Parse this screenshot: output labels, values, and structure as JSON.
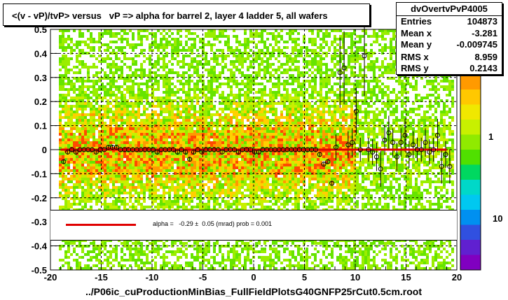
{
  "title": "<(v - vP)/tvP> versus   vP => alpha for barrel 2, layer 4 ladder 5, all wafers",
  "xlabel": "../P06ic_cuProductionMinBias_FullFieldPlotsG40GNFP25rCut0.5cm.root",
  "stats": {
    "name": "dvOvertvPvP4005",
    "rows": [
      {
        "key": "Entries",
        "value": "104873"
      },
      {
        "key": "Mean x",
        "value": "-3.281"
      },
      {
        "key": "Mean y",
        "value": "-0.009745"
      },
      {
        "key": "RMS x",
        "value": "8.959"
      },
      {
        "key": "RMS y",
        "value": "0.2143"
      }
    ]
  },
  "fit": {
    "text": "alpha =   -0.29 ±  0.05 (mrad) prob = 0.001",
    "line_color": "#e00000"
  },
  "colorbar": {
    "labels": [
      "1",
      "10"
    ]
  },
  "chart_data": {
    "type": "scatter",
    "xlim": [
      -20,
      20
    ],
    "ylim": [
      -0.5,
      0.5
    ],
    "x_ticks": [
      -20,
      -15,
      -10,
      -5,
      0,
      5,
      10,
      15,
      20
    ],
    "y_ticks": [
      -0.5,
      -0.4,
      -0.3,
      -0.2,
      -0.1,
      0,
      0.1,
      0.2,
      0.3,
      0.4,
      0.5
    ],
    "x_tick_labels": [
      "-20",
      "-15",
      "-10",
      "-5",
      "0",
      "5",
      "10",
      "15",
      "20"
    ],
    "y_tick_labels": [
      "-0.5",
      "-0.4",
      "-0.3",
      "-0.2",
      "-0.1",
      "0",
      "0.1",
      "0.2",
      "0.3",
      "0.4",
      "0.5"
    ],
    "grid": true,
    "fit_line": {
      "x": [
        -19,
        19
      ],
      "y": [
        0,
        0
      ]
    },
    "points": [
      {
        "x": -18.7,
        "y": -0.05
      },
      {
        "x": -18.3,
        "y": -0.01
      },
      {
        "x": -17.9,
        "y": 0.0
      },
      {
        "x": -17.5,
        "y": -0.01
      },
      {
        "x": -17.1,
        "y": 0.0
      },
      {
        "x": -16.7,
        "y": 0.0
      },
      {
        "x": -16.3,
        "y": 0.0
      },
      {
        "x": -15.9,
        "y": 0.0
      },
      {
        "x": -15.5,
        "y": -0.01
      },
      {
        "x": -15.1,
        "y": 0.0
      },
      {
        "x": -14.7,
        "y": 0.0
      },
      {
        "x": -14.3,
        "y": 0.01
      },
      {
        "x": -13.9,
        "y": 0.01
      },
      {
        "x": -13.5,
        "y": 0.01
      },
      {
        "x": -13.1,
        "y": 0.0
      },
      {
        "x": -12.7,
        "y": 0.0
      },
      {
        "x": -12.3,
        "y": 0.0
      },
      {
        "x": -11.9,
        "y": 0.0
      },
      {
        "x": -11.5,
        "y": 0.0
      },
      {
        "x": -11.1,
        "y": 0.0
      },
      {
        "x": -10.7,
        "y": 0.0
      },
      {
        "x": -10.3,
        "y": 0.0
      },
      {
        "x": -9.9,
        "y": 0.0
      },
      {
        "x": -9.5,
        "y": -0.01
      },
      {
        "x": -9.1,
        "y": 0.0
      },
      {
        "x": -8.7,
        "y": 0.0
      },
      {
        "x": -8.3,
        "y": 0.0
      },
      {
        "x": -7.9,
        "y": 0.0
      },
      {
        "x": -7.5,
        "y": -0.01
      },
      {
        "x": -7.1,
        "y": 0.0
      },
      {
        "x": -6.7,
        "y": -0.01
      },
      {
        "x": -6.3,
        "y": -0.04
      },
      {
        "x": -5.9,
        "y": -0.01
      },
      {
        "x": -5.5,
        "y": 0.0
      },
      {
        "x": -5.1,
        "y": -0.01
      },
      {
        "x": -4.7,
        "y": 0.0
      },
      {
        "x": -4.3,
        "y": 0.0
      },
      {
        "x": -3.9,
        "y": 0.0
      },
      {
        "x": -3.5,
        "y": 0.0
      },
      {
        "x": -3.1,
        "y": -0.01
      },
      {
        "x": -2.7,
        "y": 0.0
      },
      {
        "x": -2.3,
        "y": 0.0
      },
      {
        "x": -1.9,
        "y": 0.0
      },
      {
        "x": -1.5,
        "y": -0.01
      },
      {
        "x": -1.1,
        "y": 0.0
      },
      {
        "x": -0.7,
        "y": 0.0
      },
      {
        "x": -0.3,
        "y": 0.0
      },
      {
        "x": 0.1,
        "y": -0.01
      },
      {
        "x": 0.5,
        "y": -0.01
      },
      {
        "x": 0.9,
        "y": 0.0
      },
      {
        "x": 1.3,
        "y": 0.0
      },
      {
        "x": 1.7,
        "y": 0.0
      },
      {
        "x": 2.1,
        "y": 0.0
      },
      {
        "x": 2.5,
        "y": 0.0
      },
      {
        "x": 2.9,
        "y": 0.0
      },
      {
        "x": 3.3,
        "y": 0.0
      },
      {
        "x": 3.7,
        "y": 0.0
      },
      {
        "x": 4.1,
        "y": 0.0
      },
      {
        "x": 4.5,
        "y": 0.0
      },
      {
        "x": 4.9,
        "y": 0.0
      },
      {
        "x": 5.3,
        "y": 0.0
      },
      {
        "x": 5.7,
        "y": 0.0
      },
      {
        "x": 6.1,
        "y": 0.0
      },
      {
        "x": 6.5,
        "y": -0.02
      },
      {
        "x": 6.9,
        "y": -0.06
      },
      {
        "x": 7.3,
        "y": -0.05
      },
      {
        "x": 7.7,
        "y": -0.14
      },
      {
        "x": 8.1,
        "y": 0.01
      },
      {
        "x": 8.5,
        "y": 0.32
      },
      {
        "x": 8.9,
        "y": 0.34
      },
      {
        "x": 9.3,
        "y": 0.02
      },
      {
        "x": 9.7,
        "y": 0.03
      },
      {
        "x": 10.1,
        "y": 0.16
      },
      {
        "x": 10.5,
        "y": 0.0
      },
      {
        "x": 10.9,
        "y": 0.39
      },
      {
        "x": 11.3,
        "y": 0.0
      },
      {
        "x": 11.7,
        "y": -0.01
      },
      {
        "x": 12.1,
        "y": -0.03
      },
      {
        "x": 12.5,
        "y": -0.08
      },
      {
        "x": 12.9,
        "y": 0.04
      },
      {
        "x": 13.3,
        "y": 0.07
      },
      {
        "x": 13.7,
        "y": 0.03
      },
      {
        "x": 14.1,
        "y": -0.03
      },
      {
        "x": 14.5,
        "y": 0.03
      },
      {
        "x": 14.9,
        "y": 0.06
      },
      {
        "x": 15.3,
        "y": -0.02
      },
      {
        "x": 15.7,
        "y": 0.02
      },
      {
        "x": 16.1,
        "y": 0.0
      },
      {
        "x": 16.5,
        "y": 0.0
      },
      {
        "x": 16.9,
        "y": 0.03
      },
      {
        "x": 17.3,
        "y": -0.01
      },
      {
        "x": 17.7,
        "y": 0.0
      },
      {
        "x": 18.1,
        "y": 0.06
      },
      {
        "x": 18.5,
        "y": -0.07
      },
      {
        "x": 18.9,
        "y": -0.02
      },
      {
        "x": 19.3,
        "y": -0.07
      }
    ]
  }
}
